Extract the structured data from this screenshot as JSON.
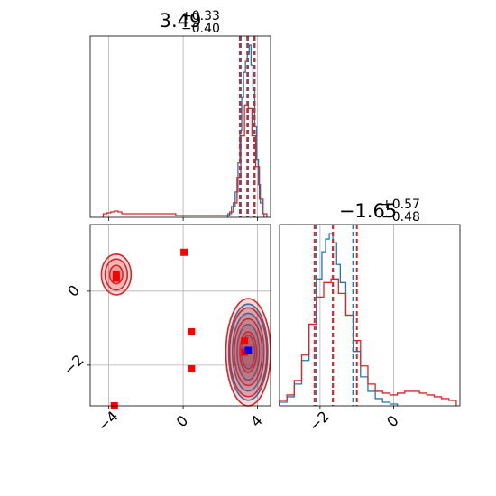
{
  "chart_data": {
    "type": "corner",
    "colors": {
      "blue": "#1f77b4",
      "red": "#d62728",
      "marker_red": "#ff0000",
      "marker_blue": "#0000ff",
      "grid": "#b0b0b0"
    },
    "panels": {
      "top_hist": {
        "type": "histogram",
        "title": {
          "value": "3.49",
          "plus": "+0.33",
          "minus": "−0.40"
        },
        "xlim": [
          -5,
          4.7
        ],
        "quantiles": {
          "blue": [
            3.1,
            3.49,
            3.82
          ],
          "red": [
            3.05,
            3.45,
            3.85
          ]
        },
        "series": [
          {
            "name": "",
            "color": "#1f77b4",
            "x": [
              2.5,
              2.7,
              2.9,
              3.0,
              3.1,
              3.2,
              3.3,
              3.4,
              3.5,
              3.6,
              3.7,
              3.8,
              3.9,
              4.0,
              4.1,
              4.2,
              4.3
            ],
            "y": [
              0.02,
              0.06,
              0.14,
              0.3,
              0.48,
              0.66,
              0.8,
              0.86,
              0.9,
              0.95,
              0.84,
              0.7,
              0.5,
              0.32,
              0.18,
              0.08,
              0.02
            ]
          },
          {
            "name": "",
            "color": "#d62728",
            "x": [
              -4.2,
              -4.0,
              -3.8,
              -3.6,
              -3.4,
              -3.2,
              2.4,
              2.6,
              2.8,
              3.0,
              3.2,
              3.4,
              3.6,
              3.8,
              4.0,
              4.2,
              4.4
            ],
            "y": [
              0.02,
              0.025,
              0.03,
              0.035,
              0.03,
              0.02,
              0.01,
              0.03,
              0.08,
              0.22,
              0.45,
              0.62,
              0.6,
              0.45,
              0.28,
              0.1,
              0.02
            ]
          }
        ]
      },
      "right_hist": {
        "type": "histogram",
        "title": {
          "value": "−1.65",
          "plus": "+0.57",
          "minus": "−0.48"
        },
        "xlim": [
          -3.1,
          1.8
        ],
        "xticks": [
          -2,
          0
        ],
        "xtick_labels": [
          "−2",
          "0"
        ],
        "quantiles": {
          "blue": [
            -2.1,
            -1.65,
            -1.1
          ],
          "red": [
            -2.15,
            -1.65,
            -1.0
          ]
        },
        "series": [
          {
            "name": "",
            "color": "#1f77b4",
            "x": [
              -3.0,
              -2.8,
              -2.6,
              -2.4,
              -2.2,
              -2.0,
              -1.9,
              -1.8,
              -1.7,
              -1.6,
              -1.5,
              -1.4,
              -1.2,
              -1.0,
              -0.8,
              -0.6,
              -0.4,
              -0.2,
              0.0
            ],
            "y": [
              0.02,
              0.05,
              0.12,
              0.25,
              0.45,
              0.7,
              0.85,
              0.92,
              0.95,
              0.9,
              0.78,
              0.68,
              0.5,
              0.3,
              0.16,
              0.08,
              0.04,
              0.02,
              0.01
            ]
          },
          {
            "name": "",
            "color": "#d62728",
            "x": [
              -3.0,
              -2.8,
              -2.6,
              -2.4,
              -2.2,
              -2.0,
              -1.8,
              -1.6,
              -1.4,
              -1.2,
              -1.0,
              -0.8,
              -0.6,
              -0.4,
              -0.2,
              0.0,
              0.2,
              0.4,
              0.6,
              0.8,
              1.0,
              1.2,
              1.4,
              1.6
            ],
            "y": [
              0.03,
              0.06,
              0.14,
              0.28,
              0.45,
              0.6,
              0.68,
              0.7,
              0.62,
              0.5,
              0.36,
              0.22,
              0.12,
              0.08,
              0.07,
              0.06,
              0.07,
              0.08,
              0.08,
              0.07,
              0.06,
              0.05,
              0.04,
              0.03
            ]
          }
        ]
      },
      "scatter": {
        "type": "contour_scatter",
        "xlim": [
          -5,
          4.7
        ],
        "ylim": [
          -3.1,
          1.8
        ],
        "xticks": [
          -4,
          0,
          4
        ],
        "xtick_labels": [
          "−4",
          "0",
          "4"
        ],
        "yticks": [
          0,
          -2
        ],
        "ytick_labels": [
          "0",
          "−2"
        ],
        "contours": [
          {
            "color": "#1f77b4",
            "center": [
              3.5,
              -1.65
            ],
            "radii": [
              [
                0.35,
                0.45
              ],
              [
                0.6,
                0.75
              ],
              [
                0.85,
                1.05
              ],
              [
                1.05,
                1.3
              ]
            ]
          },
          {
            "color": "#d62728",
            "center": [
              3.5,
              -1.65
            ],
            "radii": [
              [
                0.45,
                0.55
              ],
              [
                0.75,
                0.9
              ],
              [
                1.0,
                1.2
              ],
              [
                1.2,
                1.45
              ]
            ]
          },
          {
            "color": "#d62728",
            "center": [
              -3.6,
              0.45
            ],
            "radii": [
              [
                0.35,
                0.25
              ],
              [
                0.6,
                0.42
              ],
              [
                0.8,
                0.55
              ]
            ]
          }
        ],
        "markers_red": [
          [
            0.05,
            1.05
          ],
          [
            0.45,
            -1.1
          ],
          [
            0.45,
            -2.1
          ],
          [
            -3.7,
            -3.1
          ],
          [
            -3.6,
            0.35
          ],
          [
            -3.6,
            0.45
          ],
          [
            3.3,
            -1.35
          ],
          [
            3.3,
            -1.65
          ]
        ],
        "markers_blue": [
          [
            3.5,
            -1.6
          ]
        ]
      }
    }
  }
}
